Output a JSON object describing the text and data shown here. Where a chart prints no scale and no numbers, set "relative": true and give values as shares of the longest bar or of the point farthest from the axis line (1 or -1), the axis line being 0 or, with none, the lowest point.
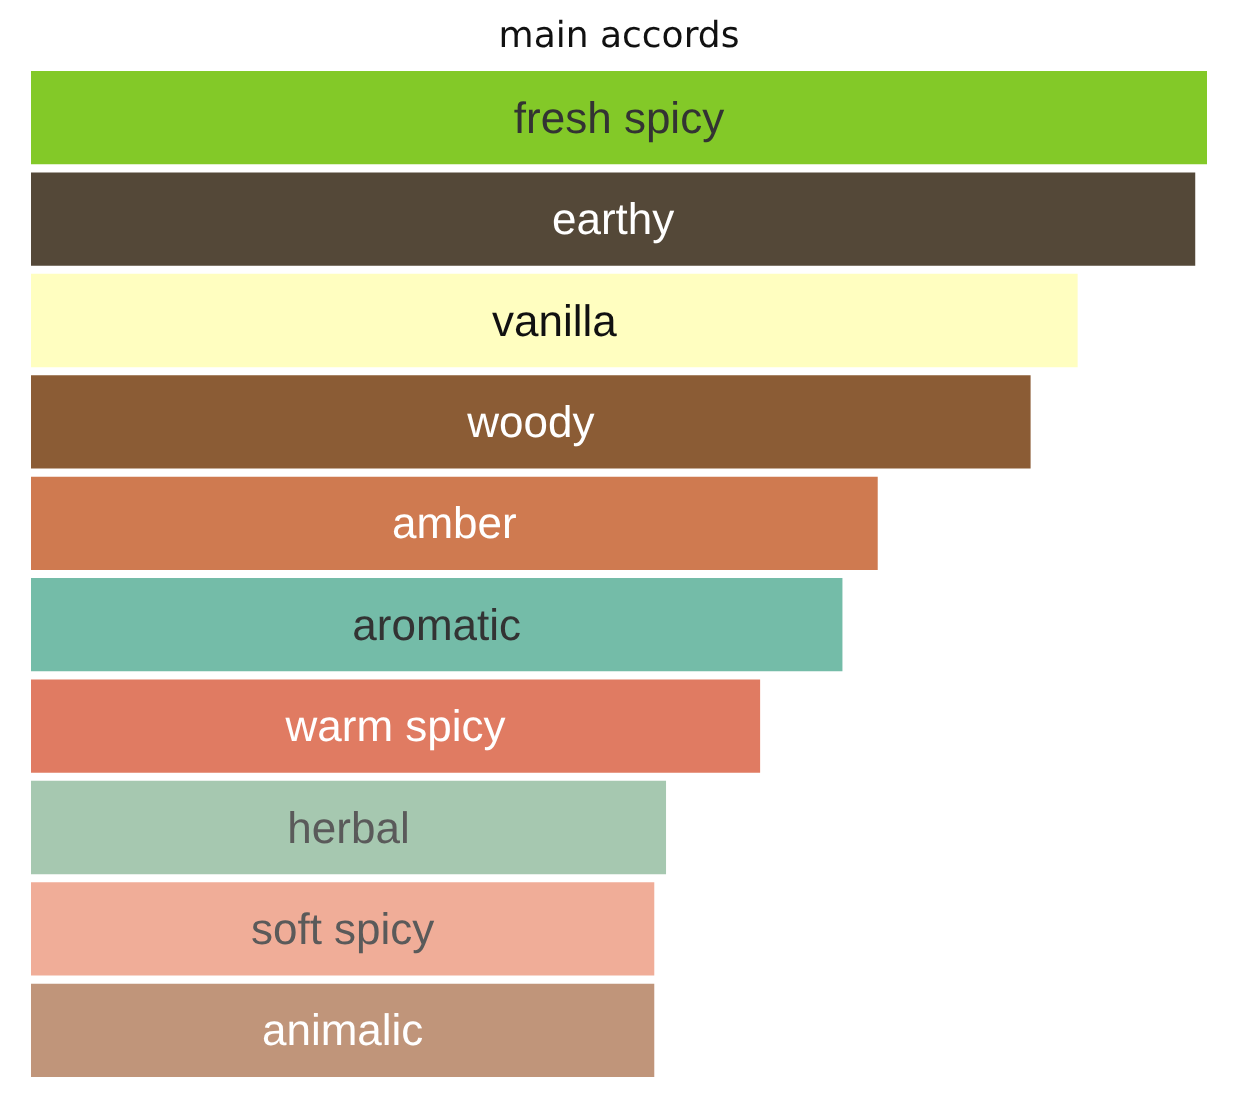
{
  "chart_data": {
    "type": "bar",
    "orientation": "horizontal",
    "relative": true,
    "title": "main accords",
    "categories": [
      "fresh spicy",
      "earthy",
      "vanilla",
      "woody",
      "amber",
      "aromatic",
      "warm spicy",
      "herbal",
      "soft spicy",
      "animalic"
    ],
    "values": [
      1.0,
      0.99,
      0.89,
      0.85,
      0.72,
      0.69,
      0.62,
      0.54,
      0.53,
      0.53
    ],
    "colors": [
      "#83c928",
      "#544838",
      "#fffec0",
      "#8b5c35",
      "#cf7a50",
      "#74bca8",
      "#e07b62",
      "#a6c8b0",
      "#f0ad98",
      "#c0957a"
    ],
    "data_labels": false,
    "grid": false
  }
}
